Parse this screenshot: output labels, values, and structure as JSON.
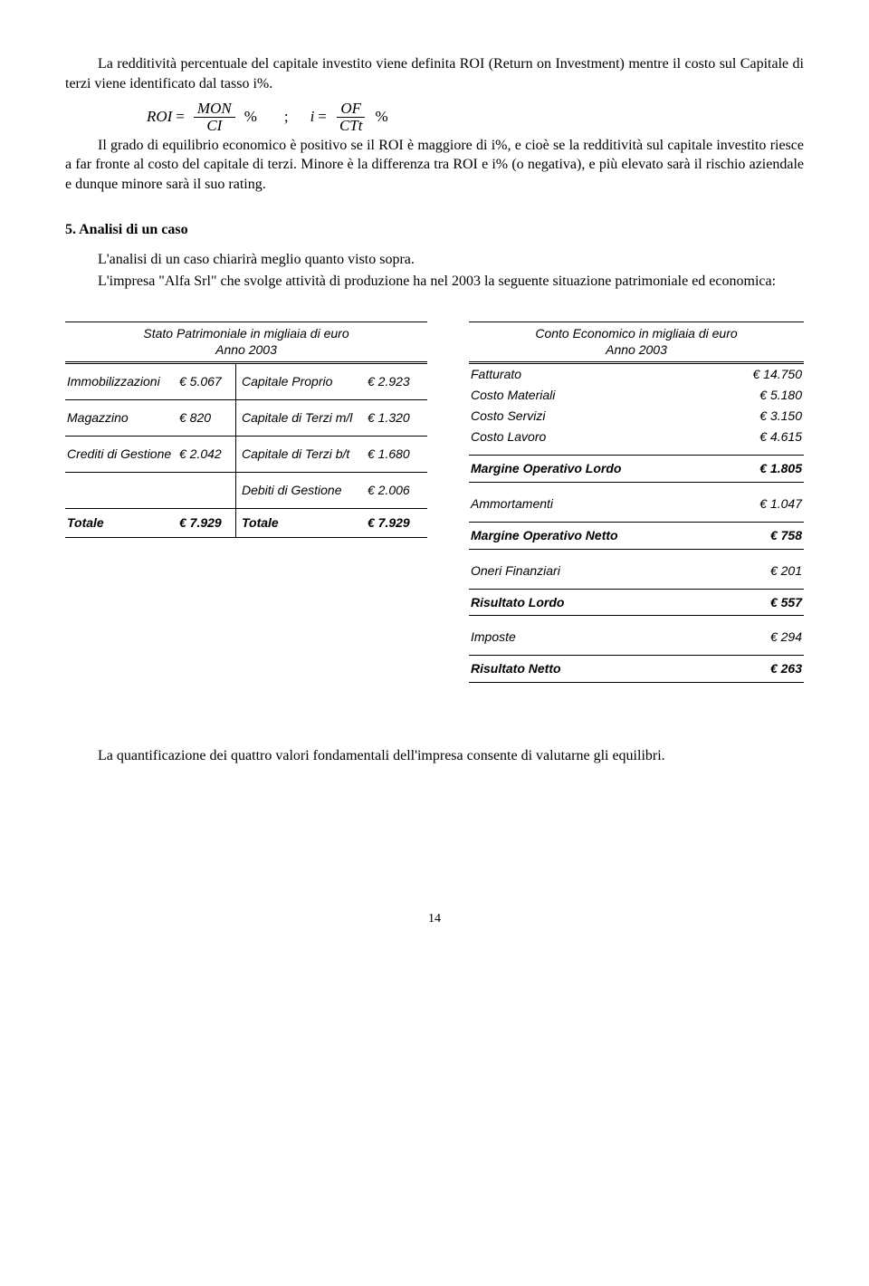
{
  "para1": "La redditività percentuale del capitale investito viene definita ROI (Return on Investment) mentre il costo sul Capitale di terzi viene identificato dal tasso i%.",
  "formula": {
    "roi_lhs": "ROI",
    "eq": "=",
    "roi_num": "MON",
    "roi_den": "CI",
    "pct": "%",
    "sep": ";",
    "i_lhs": "i",
    "i_num": "OF",
    "i_den": "CTt"
  },
  "para2": "Il grado di equilibrio economico è positivo se il ROI è maggiore di i%, e cioè se la redditività sul capitale investito riesce a far fronte al costo del capitale di terzi. Minore è la differenza tra ROI e i% (o negativa), e più elevato sarà il rischio aziendale e dunque minore sarà il suo rating.",
  "section5": "5. Analisi di un caso",
  "para3": "L'analisi di un caso chiarirà meglio quanto visto sopra.",
  "para4": "L'impresa \"Alfa Srl\" che svolge attività di produzione ha nel 2003 la seguente  situazione patrimoniale ed economica:",
  "sp": {
    "title1": "Stato Patrimoniale in migliaia di euro",
    "title2": "Anno 2003",
    "rows": [
      {
        "ll": "Immobilizzazioni",
        "lv": "€ 5.067",
        "rl": "Capitale Proprio",
        "rv": "€ 2.923"
      },
      {
        "ll": "Magazzino",
        "lv": "€ 820",
        "rl": "Capitale di Terzi m/l",
        "rv": "€ 1.320"
      },
      {
        "ll": "Crediti di Gestione",
        "lv": "€ 2.042",
        "rl": "Capitale di Terzi b/t",
        "rv": "€ 1.680"
      },
      {
        "ll": "",
        "lv": "",
        "rl": "Debiti di Gestione",
        "rv": "€ 2.006"
      }
    ],
    "tot_ll": "Totale",
    "tot_lv": "€ 7.929",
    "tot_rl": "Totale",
    "tot_rv": "€ 7.929"
  },
  "ce": {
    "title1": "Conto Economico in migliaia di euro",
    "title2": "Anno 2003",
    "rows": [
      {
        "l": "Fatturato",
        "v": "€ 14.750",
        "cls": ""
      },
      {
        "l": "Costo Materiali",
        "v": "€ 5.180",
        "cls": ""
      },
      {
        "l": "Costo Servizi",
        "v": "€ 3.150",
        "cls": ""
      },
      {
        "l": "Costo Lavoro",
        "v": "€ 4.615",
        "cls": "sect-gap-after"
      },
      {
        "l": "Margine Operativo Lordo",
        "v": "€ 1.805",
        "cls": "bold sect"
      },
      {
        "l": "Ammortamenti",
        "v": "€ 1.047",
        "cls": "sect-gap sect-gap-after"
      },
      {
        "l": "Margine Operativo Netto",
        "v": "€ 758",
        "cls": "bold sect"
      },
      {
        "l": "Oneri Finanziari",
        "v": "€ 201",
        "cls": "sect-gap sect-gap-after"
      },
      {
        "l": "Risultato Lordo",
        "v": "€ 557",
        "cls": "bold sect"
      },
      {
        "l": "Imposte",
        "v": "€ 294",
        "cls": "sect-gap sect-gap-after"
      },
      {
        "l": "Risultato Netto",
        "v": "€ 263",
        "cls": "bold sect"
      }
    ]
  },
  "para5": "La quantificazione dei quattro valori fondamentali dell'impresa consente di valutarne gli equilibri.",
  "page": "14"
}
